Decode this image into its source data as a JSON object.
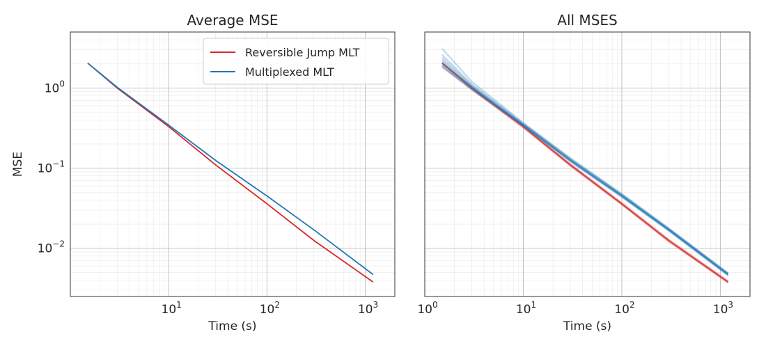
{
  "chart_data": [
    {
      "type": "line",
      "title": "Average MSE",
      "xlabel": "Time (s)",
      "ylabel": "MSE",
      "xscale": "log",
      "yscale": "log",
      "xlim": [
        1.0,
        2000
      ],
      "ylim": [
        0.0025,
        5.0
      ],
      "xticks": [
        10,
        100,
        1000
      ],
      "xtick_labels": [
        {
          "base": "10",
          "exp": "1"
        },
        {
          "base": "10",
          "exp": "2"
        },
        {
          "base": "10",
          "exp": "3"
        }
      ],
      "yticks": [
        0.01,
        0.1,
        1
      ],
      "ytick_labels": [
        {
          "base": "10",
          "exp": "−2"
        },
        {
          "base": "10",
          "exp": "−1"
        },
        {
          "base": "10",
          "exp": "0"
        }
      ],
      "grid": true,
      "legend": "top-right",
      "series": [
        {
          "name": "Reversible Jump MLT",
          "color": "#d62728",
          "x": [
            1.5,
            3,
            10,
            30,
            100,
            300,
            1200
          ],
          "y": [
            2.05,
            1.0,
            0.33,
            0.11,
            0.036,
            0.0125,
            0.0038
          ]
        },
        {
          "name": "Multiplexed MLT",
          "color": "#1f77b4",
          "x": [
            1.5,
            3,
            10,
            30,
            100,
            300,
            1200
          ],
          "y": [
            2.05,
            1.02,
            0.345,
            0.125,
            0.045,
            0.017,
            0.0047
          ]
        }
      ]
    },
    {
      "type": "line",
      "title": "All MSES",
      "xlabel": "Time (s)",
      "ylabel": "",
      "xscale": "log",
      "yscale": "log",
      "xlim": [
        1.0,
        2000
      ],
      "ylim": [
        0.0025,
        5.0
      ],
      "xticks": [
        1,
        10,
        100,
        1000
      ],
      "xtick_labels": [
        {
          "base": "10",
          "exp": "0"
        },
        {
          "base": "10",
          "exp": "1"
        },
        {
          "base": "10",
          "exp": "2"
        },
        {
          "base": "10",
          "exp": "3"
        }
      ],
      "grid": true,
      "series": [
        {
          "group": "Reversible Jump MLT",
          "color": "#d62728",
          "x": [
            1.5,
            3,
            10,
            30,
            100,
            300,
            1200
          ],
          "runs": [
            [
              2.05,
              1.0,
              0.33,
              0.11,
              0.036,
              0.0125,
              0.0038
            ],
            [
              1.95,
              0.97,
              0.32,
              0.107,
              0.035,
              0.0121,
              0.0037
            ],
            [
              2.15,
              1.03,
              0.34,
              0.113,
              0.037,
              0.0129,
              0.0039
            ],
            [
              1.88,
              0.95,
              0.325,
              0.108,
              0.0355,
              0.0123,
              0.00375
            ]
          ]
        },
        {
          "group": "Multiplexed MLT",
          "color": "#1f77b4",
          "x": [
            1.5,
            3,
            10,
            30,
            100,
            300,
            1200
          ],
          "runs": [
            [
              2.05,
              1.02,
              0.345,
              0.125,
              0.045,
              0.017,
              0.0047
            ],
            [
              1.9,
              0.98,
              0.34,
              0.122,
              0.044,
              0.0166,
              0.0046
            ],
            [
              2.25,
              1.06,
              0.352,
              0.128,
              0.046,
              0.0174,
              0.0048
            ],
            [
              2.6,
              1.12,
              0.36,
              0.131,
              0.047,
              0.0176,
              0.0049
            ],
            [
              3.1,
              1.2,
              0.37,
              0.134,
              0.048,
              0.0178,
              0.0049
            ],
            [
              1.8,
              0.96,
              0.338,
              0.121,
              0.0435,
              0.0165,
              0.00455
            ],
            [
              2.4,
              1.08,
              0.355,
              0.13,
              0.0465,
              0.0172,
              0.00475
            ]
          ]
        }
      ]
    }
  ]
}
